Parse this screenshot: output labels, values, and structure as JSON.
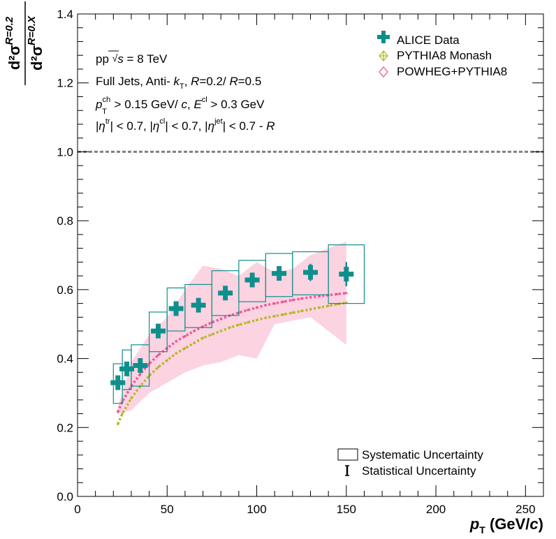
{
  "chart_data": {
    "type": "scatter",
    "xlabel": {
      "main": "p",
      "sub": "T",
      "unit": " (GeV/",
      "unit_it": "c",
      "unit_end": ")"
    },
    "ylabel": {
      "num": "d²σ",
      "num_sup": "R=0.2",
      "den": "d²σ",
      "den_sup": "R=0.X"
    },
    "xlim": [
      0,
      260
    ],
    "ylim": [
      0.0,
      1.4
    ],
    "xticks": [
      0,
      50,
      100,
      150,
      200,
      250
    ],
    "yticks": [
      0.0,
      0.2,
      0.4,
      0.6,
      0.8,
      1.0,
      1.2,
      1.4
    ],
    "xtick_labels": [
      "0",
      "50",
      "100",
      "150",
      "200",
      "250"
    ],
    "ytick_labels": [
      "0.0",
      "0.2",
      "0.4",
      "0.6",
      "0.8",
      "1.0",
      "1.2",
      "1.4"
    ],
    "reference_line": 1.0,
    "annotations": [
      "pp  √s = 8 TeV",
      "Full Jets, Anti- kT, R=0.2/ R=0.5",
      "p_T^ch > 0.15 GeV/ c, E^cl > 0.3 GeV",
      "|η^tr| < 0.7, |η^cl| < 0.7, |η^jet| < 0.7 -  R"
    ],
    "legend": {
      "position": "top-right",
      "entries": [
        "ALICE Data",
        "PYTHIA8 Monash",
        "POWHEG+PYTHIA8"
      ]
    },
    "legend2": {
      "position": "bottom-right",
      "entries": [
        "Systematic Uncertainty",
        "Statistical Uncertainty"
      ]
    },
    "series": [
      {
        "name": "ALICE Data",
        "color": "#0f8f8c",
        "x": [
          22.5,
          27.5,
          35,
          45,
          55,
          67.5,
          82.5,
          97.5,
          112.5,
          130,
          150
        ],
        "y": [
          0.33,
          0.37,
          0.38,
          0.48,
          0.545,
          0.555,
          0.59,
          0.628,
          0.647,
          0.65,
          0.645
        ],
        "stat_err": [
          0.015,
          0.02,
          0.015,
          0.015,
          0.02,
          0.012,
          0.012,
          0.016,
          0.02,
          0.025,
          0.035
        ],
        "x_lo": [
          20,
          25,
          30,
          40,
          50,
          60,
          75,
          90,
          105,
          120,
          140
        ],
        "x_hi": [
          25,
          30,
          40,
          50,
          60,
          75,
          90,
          105,
          120,
          140,
          160
        ],
        "sys_lo": [
          0.27,
          0.31,
          0.32,
          0.42,
          0.48,
          0.49,
          0.525,
          0.565,
          0.58,
          0.585,
          0.56
        ],
        "sys_hi": [
          0.385,
          0.425,
          0.44,
          0.535,
          0.605,
          0.615,
          0.655,
          0.685,
          0.705,
          0.71,
          0.73
        ]
      },
      {
        "name": "PYTHIA8 Monash",
        "color": "#b5b82a",
        "x": [
          22.5,
          25,
          30,
          35,
          40,
          45,
          50,
          55,
          60,
          65,
          70,
          75,
          80,
          85,
          90,
          95,
          100,
          105,
          110,
          115,
          120,
          125,
          130,
          135,
          140,
          145,
          150
        ],
        "y": [
          0.21,
          0.24,
          0.285,
          0.32,
          0.35,
          0.375,
          0.395,
          0.415,
          0.43,
          0.445,
          0.46,
          0.47,
          0.48,
          0.49,
          0.498,
          0.505,
          0.512,
          0.518,
          0.523,
          0.528,
          0.533,
          0.538,
          0.543,
          0.548,
          0.553,
          0.558,
          0.562
        ]
      },
      {
        "name": "POWHEG+PYTHIA8",
        "color": "#f0569a",
        "band_color": "#fcd3e1",
        "x": [
          22.5,
          25,
          30,
          35,
          40,
          45,
          50,
          55,
          60,
          65,
          70,
          75,
          80,
          85,
          90,
          95,
          100,
          105,
          110,
          115,
          120,
          125,
          130,
          135,
          140,
          145,
          150
        ],
        "y": [
          0.245,
          0.275,
          0.32,
          0.355,
          0.385,
          0.41,
          0.43,
          0.45,
          0.465,
          0.48,
          0.493,
          0.505,
          0.515,
          0.525,
          0.533,
          0.541,
          0.548,
          0.555,
          0.56,
          0.565,
          0.57,
          0.574,
          0.578,
          0.581,
          0.584,
          0.587,
          0.59
        ],
        "band_x": [
          22.5,
          30,
          40,
          50,
          60,
          70,
          80,
          90,
          100,
          110,
          120,
          130,
          140,
          150
        ],
        "band_lo": [
          0.24,
          0.25,
          0.3,
          0.33,
          0.36,
          0.38,
          0.39,
          0.41,
          0.4,
          0.5,
          0.51,
          0.52,
          0.48,
          0.44
        ],
        "band_hi": [
          0.26,
          0.39,
          0.47,
          0.52,
          0.6,
          0.67,
          0.66,
          0.64,
          0.68,
          0.65,
          0.66,
          0.7,
          0.72,
          0.74
        ]
      }
    ]
  }
}
